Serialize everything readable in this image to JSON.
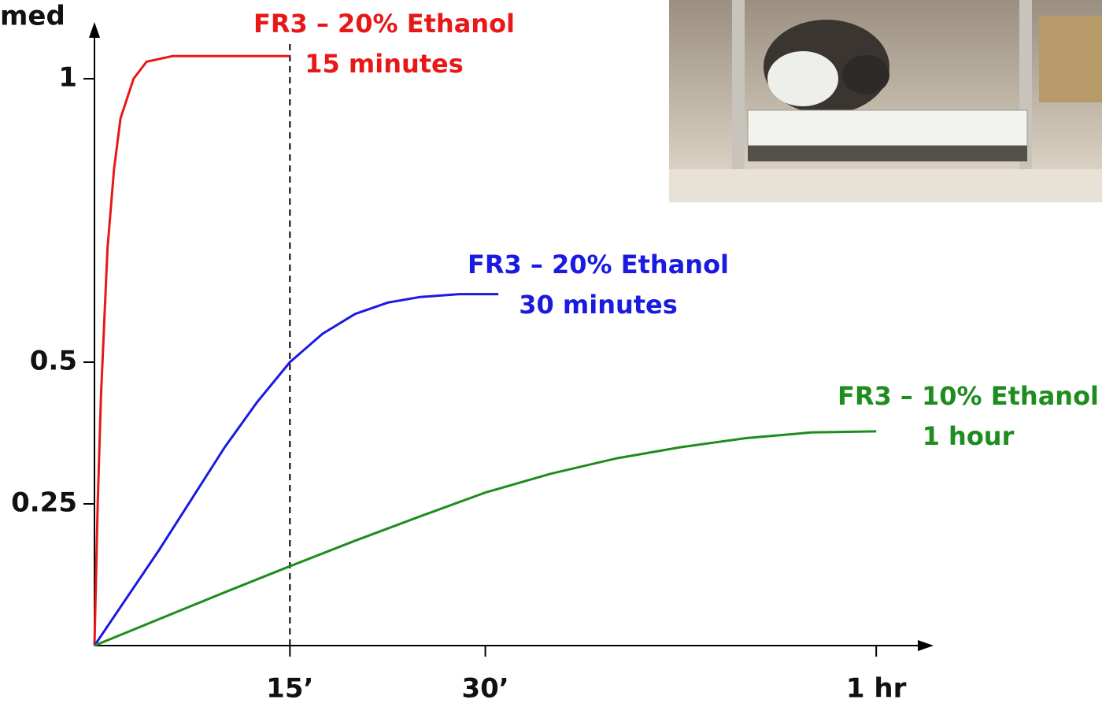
{
  "chart_data": {
    "type": "line",
    "ylabel": "med",
    "xlim": [
      0,
      64.4
    ],
    "ylim": [
      0,
      1.1
    ],
    "xticks": [
      {
        "value": 15,
        "label": "15’"
      },
      {
        "value": 30,
        "label": "30’"
      },
      {
        "value": 60,
        "label": "1 hr"
      }
    ],
    "yticks": [
      0.25,
      0.5,
      1
    ],
    "vline": 15,
    "series": [
      {
        "name": "FR3 – 20% Ethanol",
        "sublabel": "15 minutes",
        "color": "#e81818",
        "x": [
          0,
          0.25,
          0.5,
          1,
          1.5,
          2,
          3,
          4,
          6,
          9,
          12,
          15
        ],
        "values": [
          0,
          0.25,
          0.44,
          0.7,
          0.84,
          0.93,
          1.0,
          1.03,
          1.04,
          1.04,
          1.04,
          1.04
        ]
      },
      {
        "name": "FR3 – 20% Ethanol",
        "sublabel": "30 minutes",
        "color": "#1a1ae0",
        "x": [
          0,
          2.5,
          5,
          7.5,
          10,
          12.5,
          15,
          17.5,
          20,
          22.5,
          25,
          28,
          31
        ],
        "values": [
          0,
          0.085,
          0.17,
          0.26,
          0.35,
          0.43,
          0.5,
          0.55,
          0.585,
          0.605,
          0.615,
          0.62,
          0.62
        ]
      },
      {
        "name": "FR3 – 10% Ethanol",
        "sublabel": "1 hour",
        "color": "#1e8c1e",
        "x": [
          0,
          5,
          10,
          15,
          20,
          25,
          30,
          35,
          40,
          45,
          50,
          55,
          60
        ],
        "values": [
          0,
          0.047,
          0.094,
          0.14,
          0.185,
          0.228,
          0.27,
          0.303,
          0.33,
          0.35,
          0.366,
          0.376,
          0.378
        ]
      }
    ]
  }
}
